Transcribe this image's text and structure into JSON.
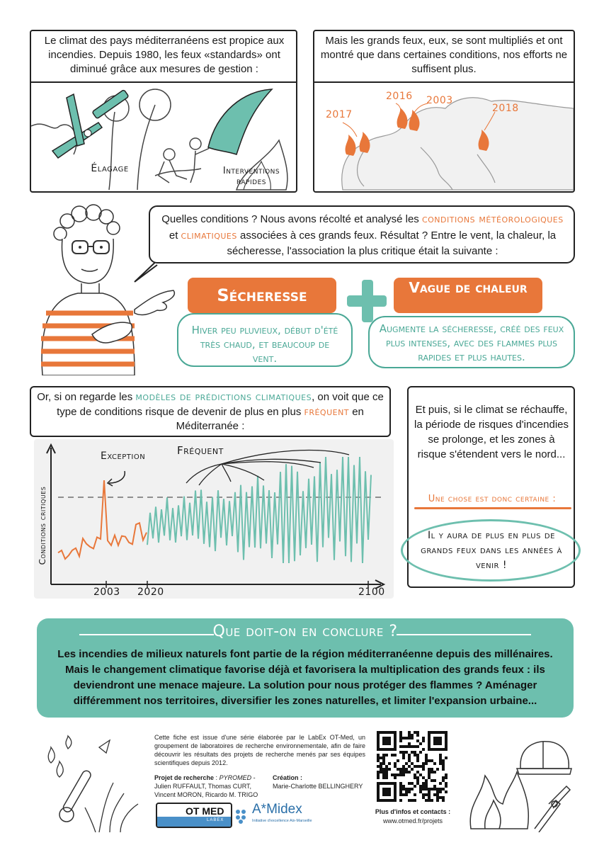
{
  "panel1": {
    "text": "Le climat des pays méditerranéens est propice aux incendies. Depuis 1980, les feux «standards» ont diminué grâce aux mesures de gestion :",
    "label_elagage": "Élagage",
    "label_interventions": "Interventions rapides"
  },
  "panel2": {
    "text": "Mais les grands feux, eux, se sont multipliés et ont montré que dans certaines conditions, nos efforts ne suffisent plus.",
    "years": [
      "2017",
      "2016",
      "2003",
      "2018"
    ]
  },
  "speech": {
    "part1": "Quelles conditions ? Nous avons récolté et analysé les ",
    "highlight1": "conditions météorologiques",
    "part2": " et ",
    "highlight2": "climatiques",
    "part3": " associées à ces grands feux. Résultat ? Entre le vent, la chaleur, la sécheresse, l'association la plus critique était la suivante :"
  },
  "secheresse": {
    "title": "Sécheresse",
    "desc": "Hiver peu pluvieux, début d'été très chaud, et beaucoup de vent."
  },
  "vague": {
    "title": "Vague de chaleur",
    "desc": "Augmente la sécheresse, créé des feux plus intenses, avec des flammes plus rapides et plus hautes."
  },
  "models": {
    "part1": "Or, si on regarde les ",
    "highlight1": "modèles de prédictions climatiques",
    "part2": ", on voit que ce type de conditions risque de devenir de plus en plus ",
    "highlight2": "fréquent",
    "part3": " en Méditerranée :"
  },
  "chart_data": {
    "type": "line",
    "ylabel": "Conditions critiques",
    "x_ticks": [
      "2003",
      "2020",
      "2100"
    ],
    "annotation_exception": "Exception",
    "annotation_frequent": "Fréquent",
    "threshold_line": "dashed",
    "colors": {
      "past": "#e8773a",
      "future": "#6dbfae"
    }
  },
  "rightpanel": {
    "text": "Et puis, si le climat se réchauffe, la période de risques d'incendies se prolonge, et les zones à risque s'étendent vers le nord...",
    "certain": "Une chose est donc certaine :",
    "conclusion": "Il y aura de plus en plus de grands feux dans les années à venir !"
  },
  "conclusion": {
    "title": "Que doit-on en conclure ?",
    "text": "Les incendies de milieux naturels font partie de la région méditerranéenne depuis des millénaires. Mais le changement climatique favorise déjà et favorisera la multiplication des grands feux : ils deviendront une menace majeure. La solution pour nous protéger des flammes ? Aménager différemment nos territoires, diversifier les zones naturelles, et limiter l'expansion urbaine..."
  },
  "footer": {
    "intro": "Cette fiche est issue d'une série élaborée par le LabEx OT-Med, un groupement de laboratoires de recherche environnementale, afin de faire découvrir les résultats des projets de recherche menés par ses équipes scientifiques depuis 2012.",
    "projet_label": "Projet de recherche",
    "projet_name": "PYROMED",
    "authors": "Julien RUFFAULT, Thomas CURT, Vincent MORON, Ricardo M. TRIGO",
    "creation_label": "Création :",
    "creation_name": "Marie-Charlotte BELLINGHERY",
    "logo1": "OT MED",
    "logo1_sub": "LABEX",
    "logo2": "A*Midex",
    "logo2_sub": "Initiative d'excellence Aix-Marseille",
    "more_info": "Plus d'infos et contacts :",
    "url": "www.otmed.fr/projets"
  }
}
